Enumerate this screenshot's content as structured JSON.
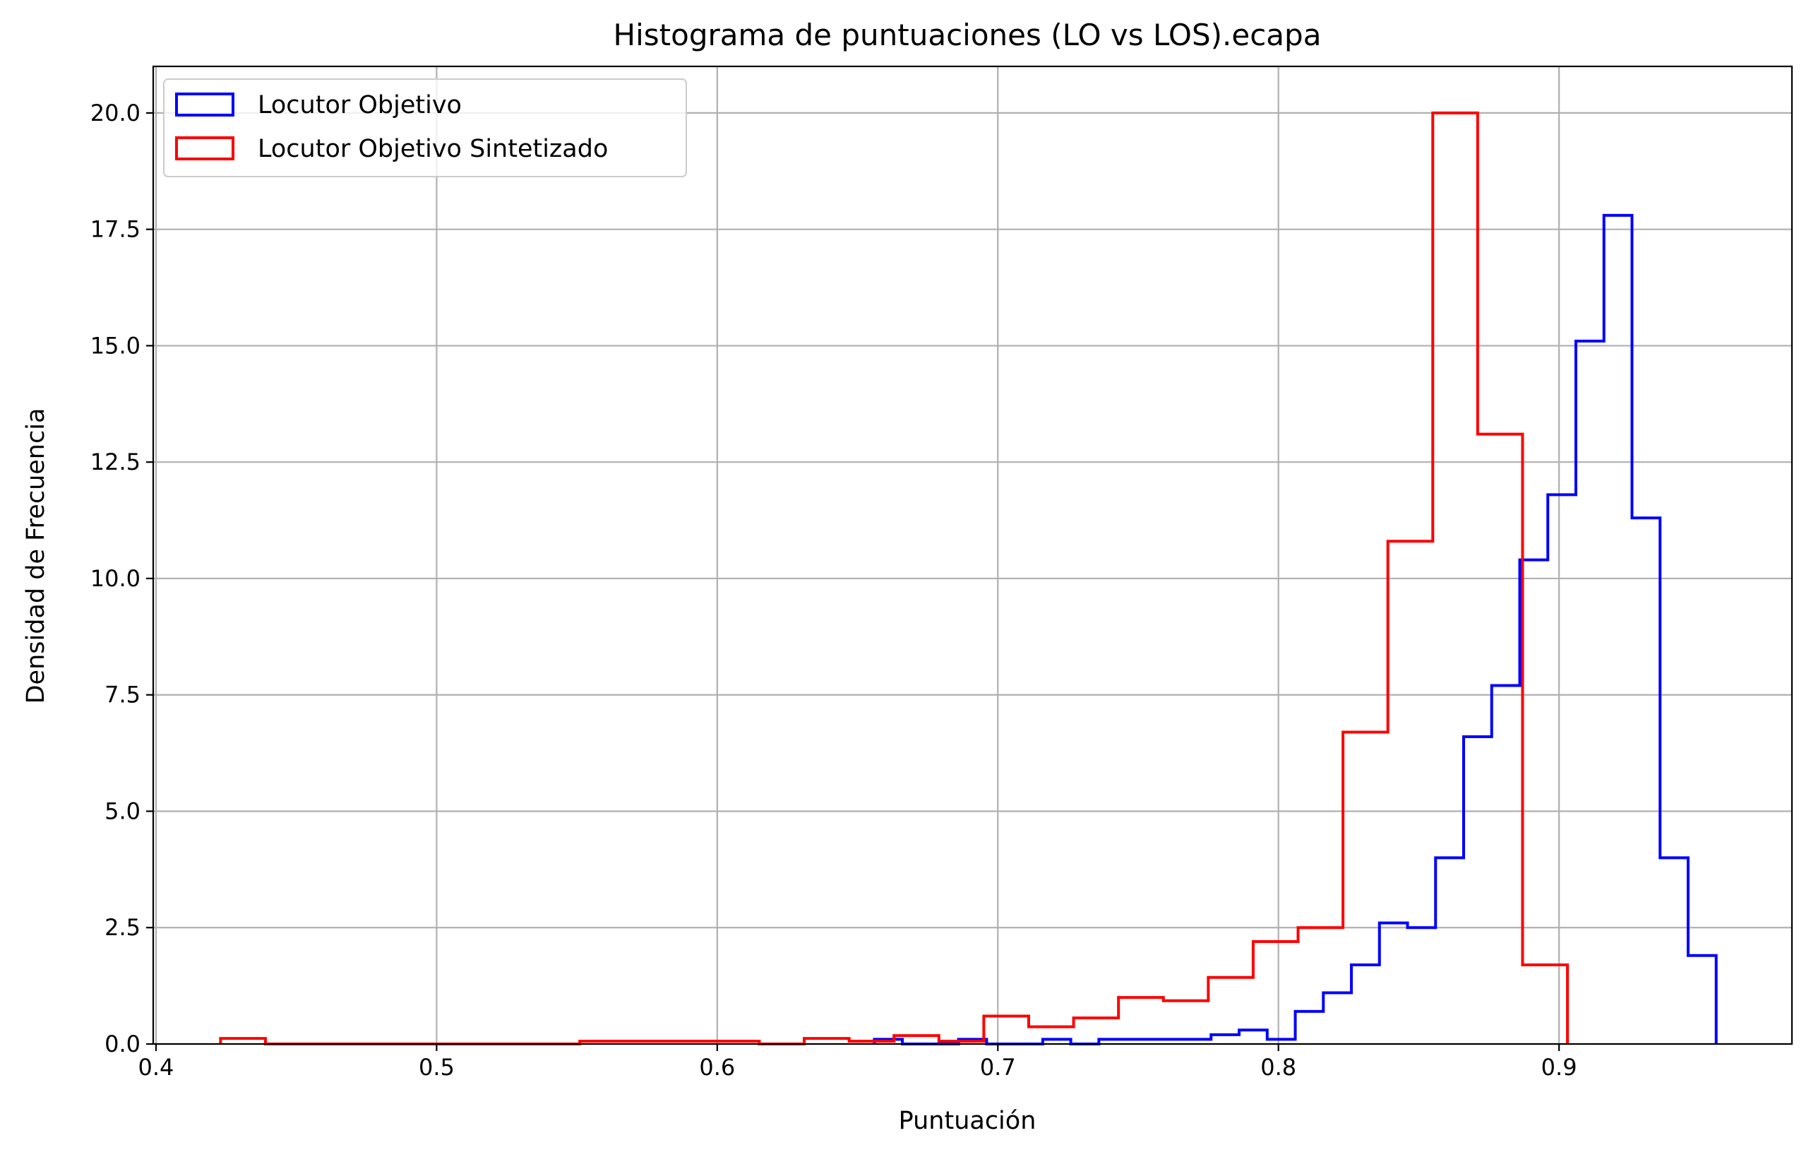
{
  "chart_data": {
    "type": "histogram",
    "title": "Histograma de puntuaciones (LO vs LOS).ecapa",
    "xlabel": "Puntuación",
    "ylabel": "Densidad de Frecuencia",
    "xlim": [
      0.399,
      0.983
    ],
    "ylim": [
      0,
      21
    ],
    "xticks": [
      0.4,
      0.5,
      0.6,
      0.7,
      0.8,
      0.9
    ],
    "xtick_labels": [
      "0.4",
      "0.5",
      "0.6",
      "0.7",
      "0.8",
      "0.9"
    ],
    "yticks": [
      0,
      2.5,
      5,
      7.5,
      10,
      12.5,
      15,
      17.5,
      20
    ],
    "ytick_labels": [
      "0.0",
      "2.5",
      "5.0",
      "7.5",
      "10.0",
      "12.5",
      "15.0",
      "17.5",
      "20.0"
    ],
    "grid": true,
    "legend_position": "top-left",
    "series": [
      {
        "name": "Locutor Objetivo",
        "color": "#0000ff",
        "edges": [
          0.656,
          0.666,
          0.676,
          0.686,
          0.696,
          0.706,
          0.716,
          0.726,
          0.736,
          0.746,
          0.756,
          0.766,
          0.776,
          0.786,
          0.796,
          0.806,
          0.816,
          0.826,
          0.836,
          0.846,
          0.856,
          0.866,
          0.876,
          0.886,
          0.896,
          0.906,
          0.916,
          0.926,
          0.936,
          0.946,
          0.956
        ],
        "values": [
          0.1,
          0.0,
          0.0,
          0.1,
          0.0,
          0.0,
          0.1,
          0.0,
          0.1,
          0.1,
          0.1,
          0.1,
          0.2,
          0.3,
          0.1,
          0.7,
          1.1,
          1.7,
          2.6,
          2.5,
          4.0,
          6.6,
          7.7,
          10.4,
          11.8,
          15.1,
          17.8,
          11.3,
          4.0,
          1.9
        ]
      },
      {
        "name": "Locutor Objetivo Sintetizado",
        "color": "#ff0000",
        "edges": [
          0.423,
          0.439,
          0.455,
          0.471,
          0.487,
          0.503,
          0.519,
          0.535,
          0.551,
          0.567,
          0.583,
          0.599,
          0.615,
          0.631,
          0.647,
          0.663,
          0.679,
          0.695,
          0.711,
          0.727,
          0.743,
          0.759,
          0.775,
          0.791,
          0.807,
          0.823,
          0.839,
          0.855,
          0.871,
          0.887,
          0.903
        ],
        "values": [
          0.12,
          0.0,
          0.0,
          0.0,
          0.0,
          0.0,
          0.0,
          0.0,
          0.06,
          0.06,
          0.06,
          0.06,
          0.0,
          0.12,
          0.06,
          0.18,
          0.06,
          0.6,
          0.37,
          0.56,
          1.0,
          0.93,
          1.43,
          2.2,
          2.5,
          6.7,
          10.8,
          20.0,
          13.1,
          1.7
        ]
      }
    ]
  }
}
